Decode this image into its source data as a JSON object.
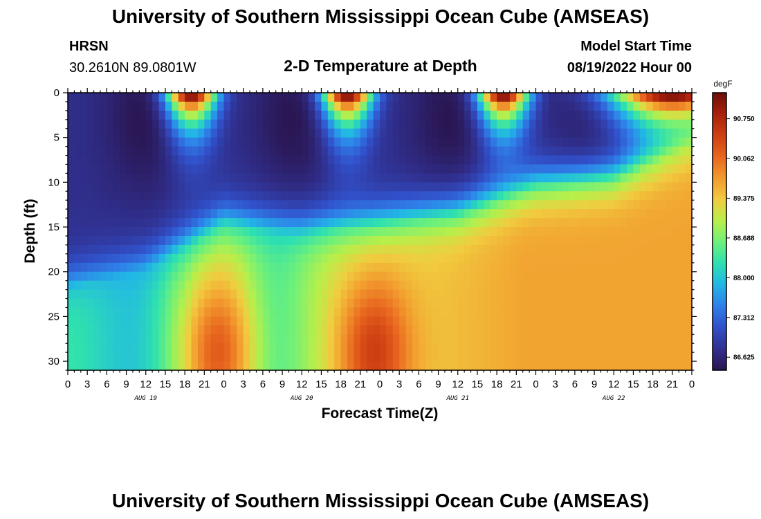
{
  "header": {
    "title": "University of Southern Mississippi Ocean Cube (AMSEAS)",
    "station": "HRSN",
    "coords": "30.2610N  89.0801W",
    "chart_title": "2-D Temperature at Depth",
    "model_start_label": "Model Start Time",
    "model_start_value": "08/19/2022 Hour 00"
  },
  "footer": {
    "title": "University of Southern Mississippi Ocean Cube (AMSEAS)"
  },
  "colors": {
    "background": "#ffffff",
    "axis": "#000000",
    "colormap": [
      "#2a1550",
      "#30308f",
      "#3150c9",
      "#2f7fe8",
      "#22b6e6",
      "#2ee0b0",
      "#6ef07a",
      "#b8ef4a",
      "#f1cc3f",
      "#f29a2e",
      "#e8661f",
      "#cf3f12",
      "#a9200b",
      "#6d0f0a"
    ]
  },
  "chart_data": {
    "type": "heatmap",
    "title": "2-D Temperature at Depth",
    "xlabel": "Forecast Time(Z)",
    "ylabel": "Depth (ft)",
    "x_tick_labels": [
      "0",
      "3",
      "6",
      "9",
      "12",
      "15",
      "18",
      "21",
      "0",
      "3",
      "6",
      "9",
      "12",
      "15",
      "18",
      "21",
      "0",
      "3",
      "6",
      "9",
      "12",
      "15",
      "18",
      "21",
      "0",
      "3",
      "6",
      "9",
      "12",
      "15",
      "18",
      "21",
      "0"
    ],
    "x_range_hours": [
      0,
      96
    ],
    "date_labels": [
      {
        "label": "AUG 19",
        "hour": 12
      },
      {
        "label": "AUG 20",
        "hour": 36
      },
      {
        "label": "AUG 21",
        "hour": 60
      },
      {
        "label": "AUG 22",
        "hour": 84
      }
    ],
    "y_ticks": [
      0,
      5,
      10,
      15,
      20,
      25,
      30
    ],
    "y_tick_labels": [
      "0",
      "5",
      "10",
      "15",
      "20",
      "25",
      "30"
    ],
    "ylim": [
      0,
      31
    ],
    "y_inverted": true,
    "colorbar": {
      "unit": "degF",
      "min": 86.4,
      "max": 91.2,
      "ticks": [
        90.75,
        90.062,
        89.375,
        88.688,
        88.0,
        87.312,
        86.625
      ],
      "tick_labels": [
        "90.750",
        "90.062",
        "89.375",
        "88.688",
        "88.000",
        "87.312",
        "86.625"
      ]
    },
    "features": {
      "surface_warm_peaks_hour": [
        19,
        43,
        67,
        93
      ],
      "cold_core_hours": [
        12,
        35,
        59,
        81
      ],
      "thermocline_depth_ft": [
        [
          0,
          22
        ],
        [
          12,
          20
        ],
        [
          24,
          15
        ],
        [
          36,
          16
        ],
        [
          48,
          15
        ],
        [
          60,
          14
        ],
        [
          72,
          11
        ],
        [
          84,
          10
        ],
        [
          96,
          6
        ]
      ],
      "bottom_warm_core_hours": [
        23,
        47
      ],
      "surface_temp_range_degF": [
        86.5,
        91.1
      ],
      "bottom_temp_range_degF": [
        88.4,
        90.6
      ]
    }
  }
}
